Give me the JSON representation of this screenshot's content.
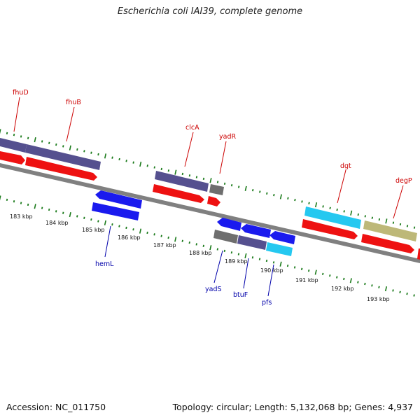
{
  "title": "Escherichia coli IAI39, complete genome",
  "footer": {
    "accession": "Accession: NC_011750",
    "summary": "Topology: circular; Length: 5,132,068 bp; Genes: 4,937"
  },
  "colors": {
    "backbone": "#808080",
    "tick_dots": "#1a7a1a",
    "label_red": "#cc0000",
    "label_blue": "#0000aa",
    "gene_red": "#ee1111",
    "gene_blue": "#1a1aee",
    "gene_purple": "#55508f",
    "gene_cyan": "#25c8f0",
    "gene_gray": "#6e6e6e",
    "gene_olive": "#bdb878"
  },
  "kbp_labels": [
    "183 kbp",
    "184 kbp",
    "185 kbp",
    "186 kbp",
    "187 kbp",
    "188 kbp",
    "189 kbp",
    "190 kbp",
    "191 kbp",
    "192 kbp",
    "193 kbp"
  ],
  "upper_genes": [
    {
      "name": "fhuD",
      "color": "purple"
    },
    {
      "name": "fhuB",
      "color": "purple"
    },
    {
      "name": "clcA",
      "color": "purple"
    },
    {
      "name": "yadR",
      "color": "gray"
    },
    {
      "name": "dgt",
      "color": "cyan"
    },
    {
      "name": "degP",
      "color": "olive"
    }
  ],
  "lower_genes": [
    {
      "name": "hemL",
      "color": "blue"
    },
    {
      "name": "yadS",
      "color": "blue"
    },
    {
      "name": "btuF",
      "color": "blue"
    },
    {
      "name": "pfs",
      "color": "cyan"
    }
  ]
}
